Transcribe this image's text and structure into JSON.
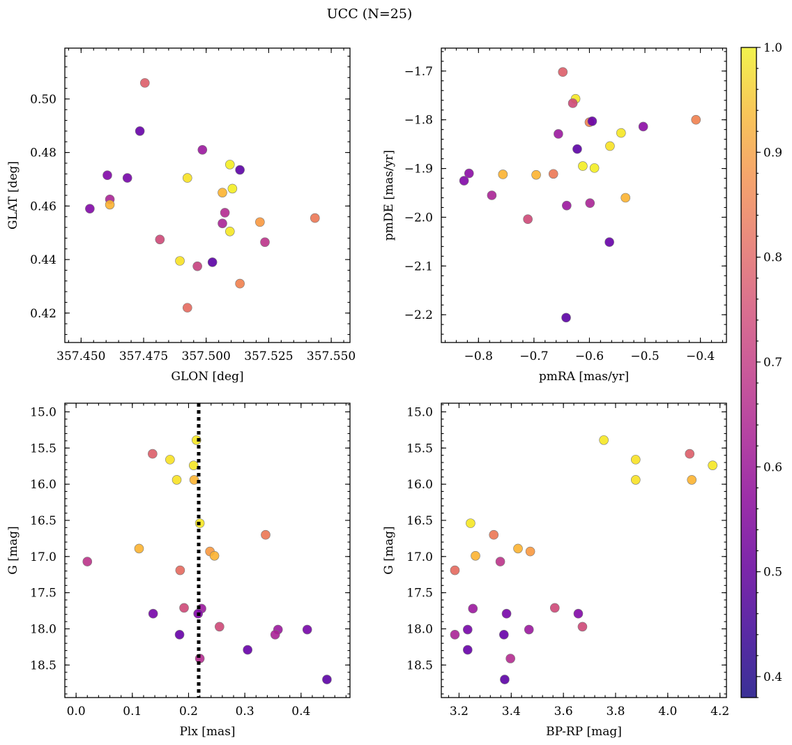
{
  "figure_title": "UCC (N=25)",
  "colorbar": {
    "min": 0.38,
    "max": 1.0,
    "ticks": [
      0.4,
      0.5,
      0.6,
      0.7,
      0.8,
      0.9,
      1.0
    ],
    "tick_labels": [
      "0.4",
      "0.5",
      "0.6",
      "0.7",
      "0.8",
      "0.9",
      "1.0"
    ],
    "colormap": "plasma"
  },
  "chart_data": [
    {
      "id": "glon-glat",
      "type": "scatter",
      "xlabel": "GLON [deg]",
      "ylabel": "GLAT [deg]",
      "xlim": [
        357.4435,
        357.5575
      ],
      "ylim": [
        0.409,
        0.519
      ],
      "invert_y": false,
      "xticks": [
        357.45,
        357.475,
        357.5,
        357.525,
        357.55
      ],
      "xtick_labels": [
        "357.450",
        "357.475",
        "357.500",
        "357.525",
        "357.550"
      ],
      "yticks": [
        0.42,
        0.44,
        0.46,
        0.48,
        0.5
      ],
      "ytick_labels": [
        "0.42",
        "0.44",
        "0.46",
        "0.48",
        "0.50"
      ],
      "points": [
        {
          "x": 357.4755,
          "y": 0.506,
          "c": 0.7
        },
        {
          "x": 357.4735,
          "y": 0.488,
          "c": 0.43
        },
        {
          "x": 357.4985,
          "y": 0.481,
          "c": 0.53
        },
        {
          "x": 357.5095,
          "y": 0.4755,
          "c": 0.98
        },
        {
          "x": 357.5135,
          "y": 0.4735,
          "c": 0.41
        },
        {
          "x": 357.4605,
          "y": 0.4715,
          "c": 0.48
        },
        {
          "x": 357.4685,
          "y": 0.4705,
          "c": 0.46
        },
        {
          "x": 357.4925,
          "y": 0.4705,
          "c": 0.96
        },
        {
          "x": 357.5105,
          "y": 0.4665,
          "c": 0.98
        },
        {
          "x": 357.5065,
          "y": 0.465,
          "c": 0.88
        },
        {
          "x": 357.4615,
          "y": 0.4625,
          "c": 0.56
        },
        {
          "x": 357.4615,
          "y": 0.4605,
          "c": 0.88
        },
        {
          "x": 357.4535,
          "y": 0.459,
          "c": 0.48
        },
        {
          "x": 357.5075,
          "y": 0.4575,
          "c": 0.58
        },
        {
          "x": 357.5435,
          "y": 0.4555,
          "c": 0.76
        },
        {
          "x": 357.5215,
          "y": 0.454,
          "c": 0.83
        },
        {
          "x": 357.5065,
          "y": 0.4535,
          "c": 0.56
        },
        {
          "x": 357.5095,
          "y": 0.4505,
          "c": 0.97
        },
        {
          "x": 357.4815,
          "y": 0.4475,
          "c": 0.65
        },
        {
          "x": 357.5235,
          "y": 0.4465,
          "c": 0.6
        },
        {
          "x": 357.4895,
          "y": 0.4395,
          "c": 0.96
        },
        {
          "x": 357.5025,
          "y": 0.439,
          "c": 0.41
        },
        {
          "x": 357.4965,
          "y": 0.4375,
          "c": 0.63
        },
        {
          "x": 357.5135,
          "y": 0.431,
          "c": 0.78
        },
        {
          "x": 357.4925,
          "y": 0.422,
          "c": 0.73
        }
      ]
    },
    {
      "id": "pmra-pmde",
      "type": "scatter",
      "xlabel": "pmRA [mas/yr]",
      "ylabel": "pmDE [mas/yr]",
      "xlim": [
        -0.867,
        -0.353
      ],
      "ylim": [
        -2.257,
        -1.653
      ],
      "invert_y": false,
      "xticks": [
        -0.8,
        -0.7,
        -0.6,
        -0.5,
        -0.4
      ],
      "xtick_labels": [
        "−0.8",
        "−0.7",
        "−0.6",
        "−0.5",
        "−0.4"
      ],
      "yticks": [
        -2.2,
        -2.1,
        -2.0,
        -1.9,
        -1.8,
        -1.7
      ],
      "ytick_labels": [
        "−2.2",
        "−2.1",
        "−2.0",
        "−1.9",
        "−1.8",
        "−1.7"
      ],
      "points": [
        {
          "x": -0.648,
          "y": -1.702,
          "c": 0.7
        },
        {
          "x": -0.625,
          "y": -1.757,
          "c": 0.97
        },
        {
          "x": -0.63,
          "y": -1.766,
          "c": 0.65
        },
        {
          "x": -0.6,
          "y": -1.805,
          "c": 0.78
        },
        {
          "x": -0.595,
          "y": -1.803,
          "c": 0.43
        },
        {
          "x": -0.408,
          "y": -1.8,
          "c": 0.78
        },
        {
          "x": -0.503,
          "y": -1.814,
          "c": 0.5
        },
        {
          "x": -0.543,
          "y": -1.827,
          "c": 0.97
        },
        {
          "x": -0.656,
          "y": -1.829,
          "c": 0.53
        },
        {
          "x": -0.563,
          "y": -1.854,
          "c": 0.96
        },
        {
          "x": -0.622,
          "y": -1.86,
          "c": 0.41
        },
        {
          "x": -0.612,
          "y": -1.895,
          "c": 0.98
        },
        {
          "x": -0.591,
          "y": -1.899,
          "c": 0.98
        },
        {
          "x": -0.665,
          "y": -1.911,
          "c": 0.76
        },
        {
          "x": -0.756,
          "y": -1.912,
          "c": 0.88
        },
        {
          "x": -0.696,
          "y": -1.913,
          "c": 0.88
        },
        {
          "x": -0.817,
          "y": -1.91,
          "c": 0.5
        },
        {
          "x": -0.826,
          "y": -1.925,
          "c": 0.48
        },
        {
          "x": -0.776,
          "y": -1.955,
          "c": 0.56
        },
        {
          "x": -0.535,
          "y": -1.96,
          "c": 0.88
        },
        {
          "x": -0.599,
          "y": -1.971,
          "c": 0.56
        },
        {
          "x": -0.641,
          "y": -1.976,
          "c": 0.53
        },
        {
          "x": -0.711,
          "y": -2.004,
          "c": 0.65
        },
        {
          "x": -0.564,
          "y": -2.051,
          "c": 0.43
        },
        {
          "x": -0.642,
          "y": -2.206,
          "c": 0.41
        }
      ]
    },
    {
      "id": "plx-g",
      "type": "scatter",
      "xlabel": "Plx [mas]",
      "ylabel": "G [mag]",
      "xlim": [
        -0.02,
        0.487
      ],
      "ylim": [
        18.95,
        14.88
      ],
      "invert_y": true,
      "xticks": [
        0.0,
        0.1,
        0.2,
        0.3,
        0.4
      ],
      "xtick_labels": [
        "0.0",
        "0.1",
        "0.2",
        "0.3",
        "0.4"
      ],
      "yticks": [
        15.0,
        15.5,
        16.0,
        16.5,
        17.0,
        17.5,
        18.0,
        18.5
      ],
      "ytick_labels": [
        "15.0",
        "15.5",
        "16.0",
        "16.5",
        "17.0",
        "17.5",
        "18.0",
        "18.5"
      ],
      "vline": {
        "x": 0.218,
        "style": "dotted"
      },
      "points": [
        {
          "x": 0.214,
          "y": 15.39,
          "c": 0.97
        },
        {
          "x": 0.136,
          "y": 15.58,
          "c": 0.7
        },
        {
          "x": 0.167,
          "y": 15.66,
          "c": 0.96
        },
        {
          "x": 0.209,
          "y": 15.74,
          "c": 0.97
        },
        {
          "x": 0.179,
          "y": 15.94,
          "c": 0.96
        },
        {
          "x": 0.21,
          "y": 15.94,
          "c": 0.88
        },
        {
          "x": 0.22,
          "y": 16.54,
          "c": 0.97
        },
        {
          "x": 0.337,
          "y": 16.7,
          "c": 0.76
        },
        {
          "x": 0.112,
          "y": 16.89,
          "c": 0.88
        },
        {
          "x": 0.238,
          "y": 16.93,
          "c": 0.83
        },
        {
          "x": 0.246,
          "y": 16.99,
          "c": 0.88
        },
        {
          "x": 0.02,
          "y": 17.07,
          "c": 0.6
        },
        {
          "x": 0.185,
          "y": 17.19,
          "c": 0.73
        },
        {
          "x": 0.192,
          "y": 17.71,
          "c": 0.65
        },
        {
          "x": 0.223,
          "y": 17.72,
          "c": 0.53
        },
        {
          "x": 0.137,
          "y": 17.79,
          "c": 0.46
        },
        {
          "x": 0.217,
          "y": 17.79,
          "c": 0.48
        },
        {
          "x": 0.255,
          "y": 17.97,
          "c": 0.65
        },
        {
          "x": 0.359,
          "y": 18.01,
          "c": 0.53
        },
        {
          "x": 0.411,
          "y": 18.01,
          "c": 0.46
        },
        {
          "x": 0.354,
          "y": 18.08,
          "c": 0.56
        },
        {
          "x": 0.184,
          "y": 18.08,
          "c": 0.43
        },
        {
          "x": 0.305,
          "y": 18.29,
          "c": 0.43
        },
        {
          "x": 0.22,
          "y": 18.41,
          "c": 0.58
        },
        {
          "x": 0.446,
          "y": 18.7,
          "c": 0.41
        }
      ]
    },
    {
      "id": "bprp-g",
      "type": "scatter",
      "xlabel": "BP-RP [mag]",
      "ylabel": "G [mag]",
      "xlim": [
        3.132,
        4.225
      ],
      "ylim": [
        18.95,
        14.88
      ],
      "invert_y": true,
      "xticks": [
        3.2,
        3.4,
        3.6,
        3.8,
        4.0,
        4.2
      ],
      "xtick_labels": [
        "3.2",
        "3.4",
        "3.6",
        "3.8",
        "4.0",
        "4.2"
      ],
      "yticks": [
        15.0,
        15.5,
        16.0,
        16.5,
        17.0,
        17.5,
        18.0,
        18.5
      ],
      "ytick_labels": [
        "15.0",
        "15.5",
        "16.0",
        "16.5",
        "17.0",
        "17.5",
        "18.0",
        "18.5"
      ],
      "points": [
        {
          "x": 3.755,
          "y": 15.39,
          "c": 0.97
        },
        {
          "x": 4.084,
          "y": 15.58,
          "c": 0.7
        },
        {
          "x": 3.877,
          "y": 15.66,
          "c": 0.96
        },
        {
          "x": 4.172,
          "y": 15.74,
          "c": 0.97
        },
        {
          "x": 3.877,
          "y": 15.94,
          "c": 0.96
        },
        {
          "x": 4.092,
          "y": 15.94,
          "c": 0.88
        },
        {
          "x": 3.244,
          "y": 16.54,
          "c": 0.97
        },
        {
          "x": 3.333,
          "y": 16.7,
          "c": 0.76
        },
        {
          "x": 3.426,
          "y": 16.89,
          "c": 0.88
        },
        {
          "x": 3.473,
          "y": 16.93,
          "c": 0.83
        },
        {
          "x": 3.263,
          "y": 16.99,
          "c": 0.88
        },
        {
          "x": 3.358,
          "y": 17.07,
          "c": 0.6
        },
        {
          "x": 3.184,
          "y": 17.19,
          "c": 0.73
        },
        {
          "x": 3.567,
          "y": 17.71,
          "c": 0.65
        },
        {
          "x": 3.253,
          "y": 17.72,
          "c": 0.53
        },
        {
          "x": 3.382,
          "y": 17.79,
          "c": 0.46
        },
        {
          "x": 3.657,
          "y": 17.79,
          "c": 0.48
        },
        {
          "x": 3.673,
          "y": 17.97,
          "c": 0.65
        },
        {
          "x": 3.233,
          "y": 18.01,
          "c": 0.46
        },
        {
          "x": 3.468,
          "y": 18.01,
          "c": 0.53
        },
        {
          "x": 3.184,
          "y": 18.08,
          "c": 0.56
        },
        {
          "x": 3.372,
          "y": 18.08,
          "c": 0.43
        },
        {
          "x": 3.233,
          "y": 18.29,
          "c": 0.43
        },
        {
          "x": 3.397,
          "y": 18.41,
          "c": 0.58
        },
        {
          "x": 3.375,
          "y": 18.7,
          "c": 0.41
        }
      ]
    }
  ]
}
